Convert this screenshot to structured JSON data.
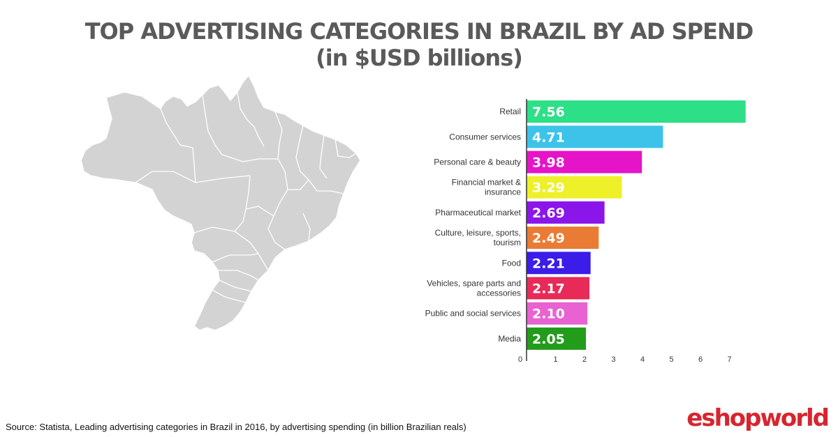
{
  "header": {
    "title_line1": "TOP ADVERTISING CATEGORIES IN BRAZIL BY AD SPEND",
    "title_line2": "(in $USD billions)"
  },
  "footer": {
    "source": "Source: Statista, Leading advertising categories in Brazil in 2016, by advertising spending (in billion Brazilian reals)",
    "brand_prefix": "eshopw",
    "brand_o": "o",
    "brand_suffix": "rld",
    "brand_color": "#d7252f"
  },
  "map": {
    "fill": "#d3d3d3",
    "stroke": "#ffffff"
  },
  "chart_data": {
    "type": "bar",
    "orientation": "horizontal",
    "categories": [
      "Retail",
      "Consumer services",
      "Personal care & beauty",
      "Financial market & insurance",
      "Pharmaceutical market",
      "Culture, leisure, sports, tourism",
      "Food",
      "Vehicles, spare parts and accessories",
      "Public and social services",
      "Media"
    ],
    "category_lines": [
      [
        "Retail"
      ],
      [
        "Consumer services"
      ],
      [
        "Personal care & beauty"
      ],
      [
        "Financial market &",
        "insurance"
      ],
      [
        "Pharmaceutical market"
      ],
      [
        "Culture, leisure, sports,",
        "tourism"
      ],
      [
        "Food"
      ],
      [
        "Vehicles, spare parts and",
        "accessories"
      ],
      [
        "Public and social services"
      ],
      [
        "Media"
      ]
    ],
    "values": [
      7.56,
      4.71,
      3.98,
      3.29,
      2.69,
      2.49,
      2.21,
      2.17,
      2.1,
      2.05
    ],
    "value_labels": [
      "7.56",
      "4.71",
      "3.98",
      "3.29",
      "2.69",
      "2.49",
      "2.21",
      "2.17",
      "2.10",
      "2.05"
    ],
    "colors": [
      "#2ddf86",
      "#3dc3ea",
      "#e614c8",
      "#eef02a",
      "#8b16ea",
      "#ea7b35",
      "#3b1ce8",
      "#e82a59",
      "#e862d2",
      "#239b1b"
    ],
    "xlim": [
      0,
      7.7
    ],
    "xticks": [
      "0",
      "1",
      "2",
      "3",
      "4",
      "5",
      "6",
      "7"
    ],
    "title": "",
    "xlabel": "",
    "ylabel": "",
    "grid": false,
    "legend": "none"
  }
}
